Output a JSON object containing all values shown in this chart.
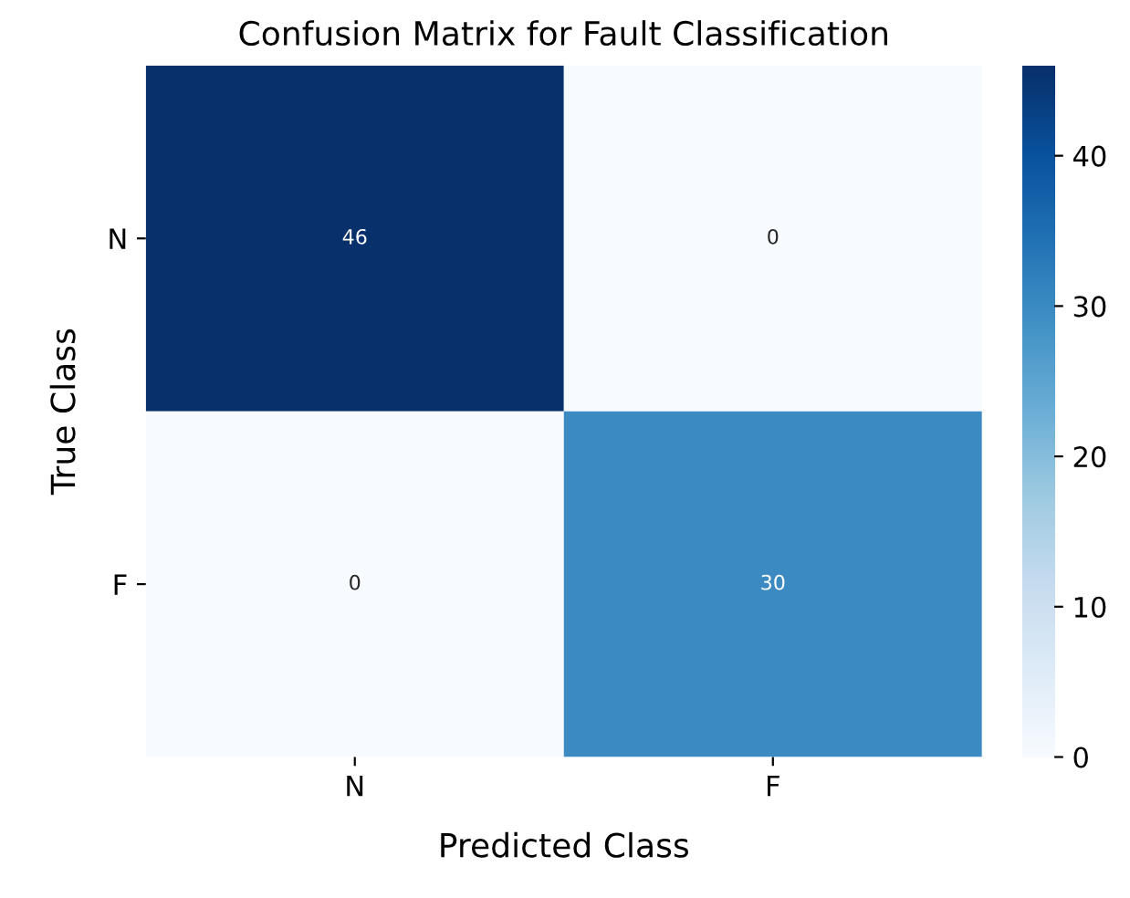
{
  "chart_data": {
    "type": "heatmap",
    "title": "Confusion Matrix for Fault Classification",
    "xlabel": "Predicted Class",
    "ylabel": "True Class",
    "categories": [
      "N",
      "F"
    ],
    "y_categories": [
      "N",
      "F"
    ],
    "cells": [
      [
        46,
        0
      ],
      [
        0,
        30
      ]
    ],
    "data_labels": true,
    "clim": [
      0,
      46
    ],
    "cticks": [
      0,
      10,
      20,
      30,
      40
    ]
  }
}
